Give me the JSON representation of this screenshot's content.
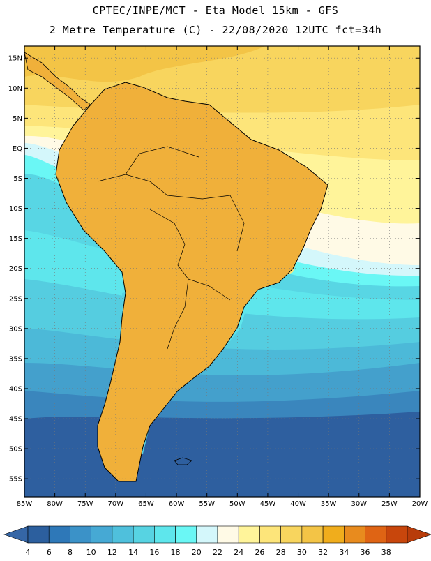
{
  "header": {
    "line1": "CPTEC/INPE/MCT -  Eta Model 15km - GFS",
    "line2": "2 Metre Temperature (C) - 22/08/2020 12UTC fct=34h"
  },
  "map": {
    "projection": "lat-lon",
    "lon_range": [
      -85,
      -20
    ],
    "lat_range": [
      -58,
      17
    ],
    "grid": true,
    "lat_ticks": [
      {
        "value": 15,
        "label": "15N"
      },
      {
        "value": 10,
        "label": "10N"
      },
      {
        "value": 5,
        "label": "5N"
      },
      {
        "value": 0,
        "label": "EQ"
      },
      {
        "value": -5,
        "label": "5S"
      },
      {
        "value": -10,
        "label": "10S"
      },
      {
        "value": -15,
        "label": "15S"
      },
      {
        "value": -20,
        "label": "20S"
      },
      {
        "value": -25,
        "label": "25S"
      },
      {
        "value": -30,
        "label": "30S"
      },
      {
        "value": -35,
        "label": "35S"
      },
      {
        "value": -40,
        "label": "40S"
      },
      {
        "value": -45,
        "label": "45S"
      },
      {
        "value": -50,
        "label": "50S"
      },
      {
        "value": -55,
        "label": "55S"
      }
    ],
    "lon_ticks": [
      {
        "value": -85,
        "label": "85W"
      },
      {
        "value": -80,
        "label": "80W"
      },
      {
        "value": -75,
        "label": "75W"
      },
      {
        "value": -70,
        "label": "70W"
      },
      {
        "value": -65,
        "label": "65W"
      },
      {
        "value": -60,
        "label": "60W"
      },
      {
        "value": -55,
        "label": "55W"
      },
      {
        "value": -50,
        "label": "50W"
      },
      {
        "value": -45,
        "label": "45W"
      },
      {
        "value": -40,
        "label": "40W"
      },
      {
        "value": -35,
        "label": "35W"
      },
      {
        "value": -30,
        "label": "30W"
      },
      {
        "value": -25,
        "label": "25W"
      },
      {
        "value": -20,
        "label": "20W"
      }
    ]
  },
  "colorbar": {
    "labels": [
      "4",
      "6",
      "8",
      "10",
      "12",
      "14",
      "16",
      "18",
      "20",
      "22",
      "24",
      "26",
      "28",
      "30",
      "32",
      "34",
      "36",
      "38"
    ],
    "colors": [
      "#2c5f9e",
      "#2e78b8",
      "#3b92c8",
      "#46a9d4",
      "#4fc0dc",
      "#57d3e2",
      "#5ee6ec",
      "#6af7f5",
      "#d4f7fb",
      "#fffae6",
      "#fff49a",
      "#fde57a",
      "#f8d55e",
      "#f3c446",
      "#f0ad1c",
      "#e88b1e",
      "#df6414",
      "#c8460c"
    ],
    "low_end_color": "#3566a6",
    "high_end_color": "#b83c0a"
  }
}
